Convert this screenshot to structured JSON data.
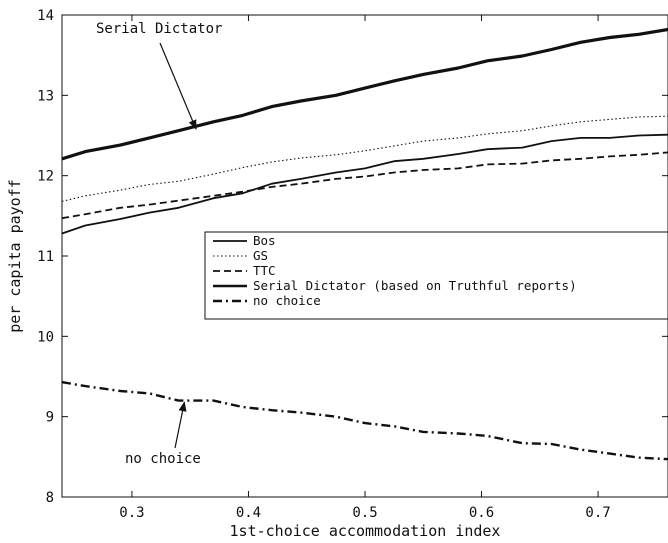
{
  "chart_data": {
    "type": "line",
    "xlabel": "1st-choice accommodation index",
    "ylabel": "per capita payoff",
    "xlim": [
      0.24,
      0.76
    ],
    "ylim": [
      8,
      14
    ],
    "xticks": [
      0.3,
      0.4,
      0.5,
      0.6,
      0.7
    ],
    "xtick_labels": [
      "0.3",
      "0.4",
      "0.5",
      "0.6",
      "0.7"
    ],
    "yticks": [
      8,
      9,
      10,
      11,
      12,
      13,
      14
    ],
    "ytick_labels": [
      "8",
      "9",
      "10",
      "11",
      "12",
      "13",
      "14"
    ],
    "grid": false,
    "legend_position": "center-right",
    "series": [
      {
        "name": "Bos",
        "style": "solid",
        "x": [
          0.24,
          0.26,
          0.29,
          0.315,
          0.34,
          0.37,
          0.395,
          0.42,
          0.445,
          0.475,
          0.5,
          0.525,
          0.55,
          0.58,
          0.605,
          0.635,
          0.66,
          0.685,
          0.71,
          0.735,
          0.76
        ],
        "y": [
          11.28,
          11.38,
          11.46,
          11.54,
          11.6,
          11.72,
          11.78,
          11.9,
          11.96,
          12.04,
          12.09,
          12.18,
          12.21,
          12.27,
          12.33,
          12.35,
          12.43,
          12.47,
          12.47,
          12.5,
          12.51
        ]
      },
      {
        "name": "GS",
        "style": "dotted",
        "x": [
          0.24,
          0.26,
          0.29,
          0.315,
          0.34,
          0.37,
          0.395,
          0.42,
          0.445,
          0.475,
          0.5,
          0.525,
          0.55,
          0.58,
          0.605,
          0.635,
          0.66,
          0.685,
          0.71,
          0.735,
          0.76
        ],
        "y": [
          11.68,
          11.75,
          11.82,
          11.89,
          11.93,
          12.02,
          12.1,
          12.17,
          12.22,
          12.26,
          12.31,
          12.37,
          12.43,
          12.47,
          12.52,
          12.56,
          12.62,
          12.67,
          12.7,
          12.73,
          12.74
        ]
      },
      {
        "name": "TTC",
        "style": "dashed",
        "x": [
          0.24,
          0.26,
          0.29,
          0.315,
          0.34,
          0.37,
          0.395,
          0.42,
          0.445,
          0.475,
          0.5,
          0.525,
          0.55,
          0.58,
          0.605,
          0.635,
          0.66,
          0.685,
          0.71,
          0.735,
          0.76
        ],
        "y": [
          11.47,
          11.52,
          11.6,
          11.64,
          11.69,
          11.75,
          11.8,
          11.86,
          11.9,
          11.96,
          11.99,
          12.04,
          12.07,
          12.09,
          12.14,
          12.15,
          12.19,
          12.21,
          12.24,
          12.26,
          12.29
        ]
      },
      {
        "name": "Serial Dictator (based on Truthful reports)",
        "style": "thick",
        "x": [
          0.24,
          0.26,
          0.29,
          0.315,
          0.34,
          0.37,
          0.395,
          0.42,
          0.445,
          0.475,
          0.5,
          0.525,
          0.55,
          0.58,
          0.605,
          0.635,
          0.66,
          0.685,
          0.71,
          0.735,
          0.76
        ],
        "y": [
          12.21,
          12.3,
          12.38,
          12.47,
          12.56,
          12.67,
          12.75,
          12.86,
          12.93,
          13.0,
          13.09,
          13.18,
          13.26,
          13.34,
          13.43,
          13.49,
          13.57,
          13.66,
          13.72,
          13.76,
          13.82
        ]
      },
      {
        "name": "no choice",
        "style": "dashdot",
        "x": [
          0.24,
          0.26,
          0.29,
          0.315,
          0.34,
          0.37,
          0.395,
          0.42,
          0.445,
          0.475,
          0.5,
          0.525,
          0.55,
          0.58,
          0.605,
          0.635,
          0.66,
          0.685,
          0.71,
          0.735,
          0.76
        ],
        "y": [
          9.43,
          9.38,
          9.32,
          9.29,
          9.2,
          9.2,
          9.12,
          9.08,
          9.05,
          9.0,
          8.92,
          8.88,
          8.81,
          8.79,
          8.76,
          8.67,
          8.66,
          8.59,
          8.54,
          8.49,
          8.47
        ]
      }
    ],
    "annotations": [
      {
        "text": "Serial Dictator",
        "target_series": 3
      },
      {
        "text": "no choice",
        "target_series": 4
      }
    ]
  }
}
